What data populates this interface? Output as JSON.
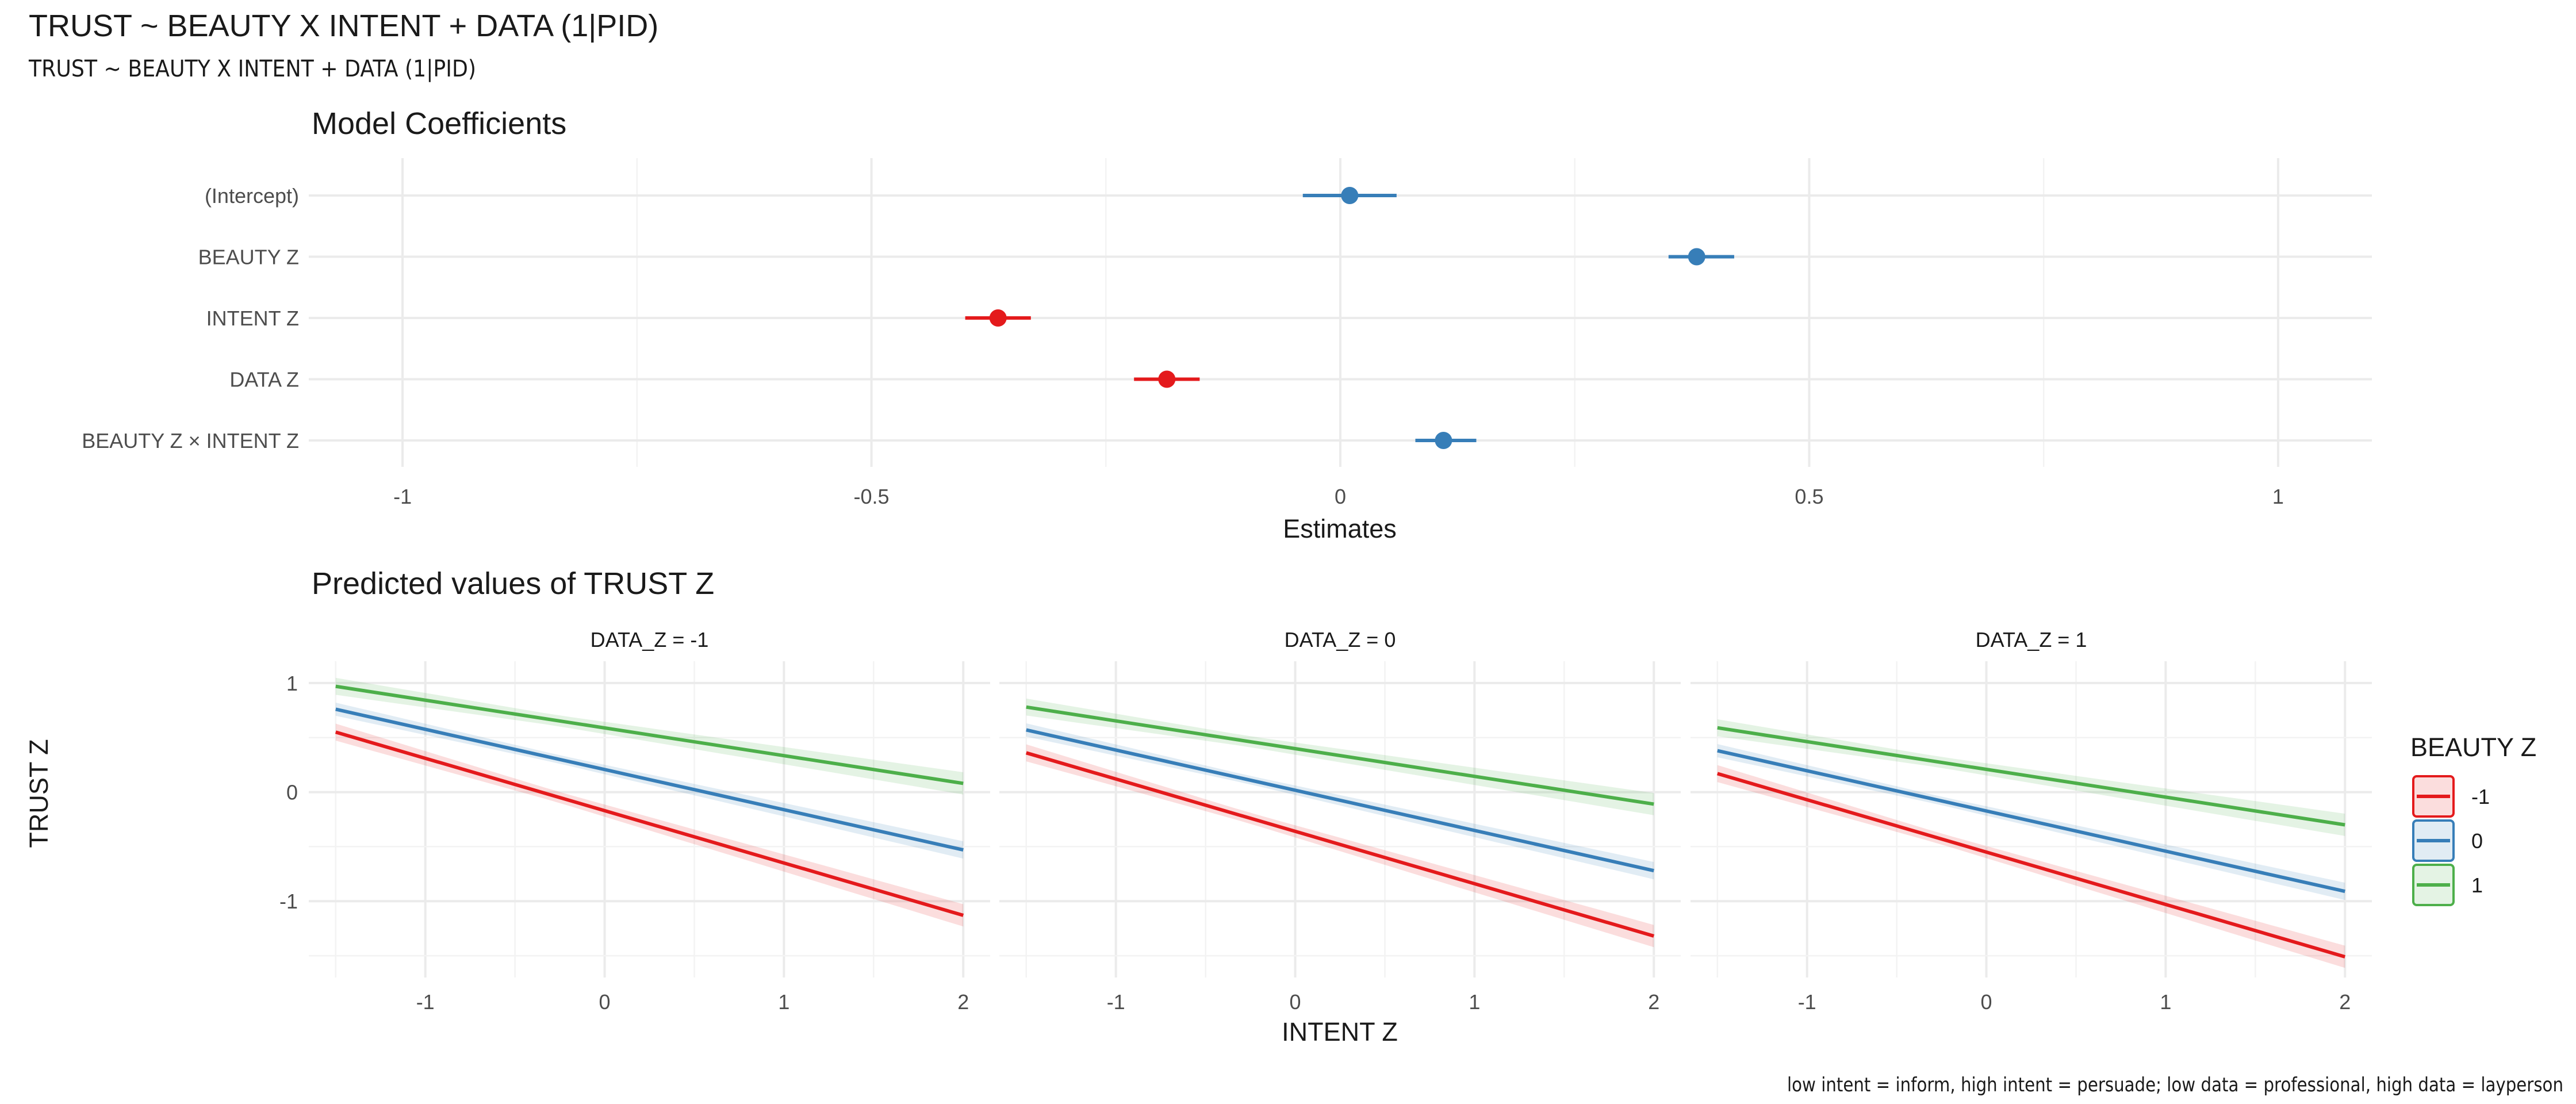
{
  "page": {
    "title": "TRUST ~ BEAUTY X INTENT + DATA (1|PID)",
    "subtitle": "TRUST ~ BEAUTY X INTENT + DATA (1|PID)",
    "caption": "low intent = inform, high intent = persuade; low data = professional, high data = layperson"
  },
  "colors": {
    "negative": "#e41a1c",
    "positive": "#377eb8",
    "beauty_-1": "#e41a1c",
    "beauty_0": "#377eb8",
    "beauty_1": "#4daf4a"
  },
  "chart_data": [
    {
      "type": "forest",
      "title": "Model Coefficients",
      "xlabel": "Estimates",
      "xlim": [
        -1.1,
        1.1
      ],
      "xticks": [
        "-1",
        "-0.5",
        "0",
        "0.5",
        "1"
      ],
      "grid": true,
      "terms": [
        {
          "term": "(Intercept)",
          "estimate": 0.01,
          "ci_low": -0.04,
          "ci_high": 0.06
        },
        {
          "term": "BEAUTY Z",
          "estimate": 0.38,
          "ci_low": 0.35,
          "ci_high": 0.42
        },
        {
          "term": "INTENT Z",
          "estimate": -0.365,
          "ci_low": -0.4,
          "ci_high": -0.33
        },
        {
          "term": "DATA Z",
          "estimate": -0.185,
          "ci_low": -0.22,
          "ci_high": -0.15
        },
        {
          "term": "BEAUTY Z × INTENT Z",
          "estimate": 0.11,
          "ci_low": 0.08,
          "ci_high": 0.145
        }
      ]
    },
    {
      "type": "line",
      "title": "Predicted values of TRUST Z",
      "xlabel": "INTENT Z",
      "ylabel": "TRUST Z",
      "xlim": [
        -1.65,
        2.15
      ],
      "ylim": [
        -1.7,
        1.2
      ],
      "xticks": [
        "-1",
        "0",
        "1",
        "2"
      ],
      "yticks": [
        "1",
        "0",
        "-1"
      ],
      "grid": true,
      "legend": {
        "title": "BEAUTY Z",
        "position": "right",
        "entries": [
          "-1",
          "0",
          "1"
        ]
      },
      "x_range": [
        -1.5,
        2
      ],
      "panels": [
        {
          "label": "DATA_Z = -1",
          "series": [
            {
              "name": "-1",
              "y_start": 0.55,
              "y_end": -1.13,
              "ci_halfwidth": 0.09
            },
            {
              "name": "0",
              "y_start": 0.76,
              "y_end": -0.53,
              "ci_halfwidth": 0.07
            },
            {
              "name": "1",
              "y_start": 0.97,
              "y_end": 0.08,
              "ci_halfwidth": 0.09
            }
          ]
        },
        {
          "label": "DATA_Z = 0",
          "series": [
            {
              "name": "-1",
              "y_start": 0.36,
              "y_end": -1.32,
              "ci_halfwidth": 0.09
            },
            {
              "name": "0",
              "y_start": 0.57,
              "y_end": -0.72,
              "ci_halfwidth": 0.07
            },
            {
              "name": "1",
              "y_start": 0.78,
              "y_end": -0.11,
              "ci_halfwidth": 0.09
            }
          ]
        },
        {
          "label": "DATA_Z = 1",
          "series": [
            {
              "name": "-1",
              "y_start": 0.17,
              "y_end": -1.51,
              "ci_halfwidth": 0.09
            },
            {
              "name": "0",
              "y_start": 0.38,
              "y_end": -0.91,
              "ci_halfwidth": 0.07
            },
            {
              "name": "1",
              "y_start": 0.59,
              "y_end": -0.3,
              "ci_halfwidth": 0.09
            }
          ]
        }
      ]
    }
  ]
}
